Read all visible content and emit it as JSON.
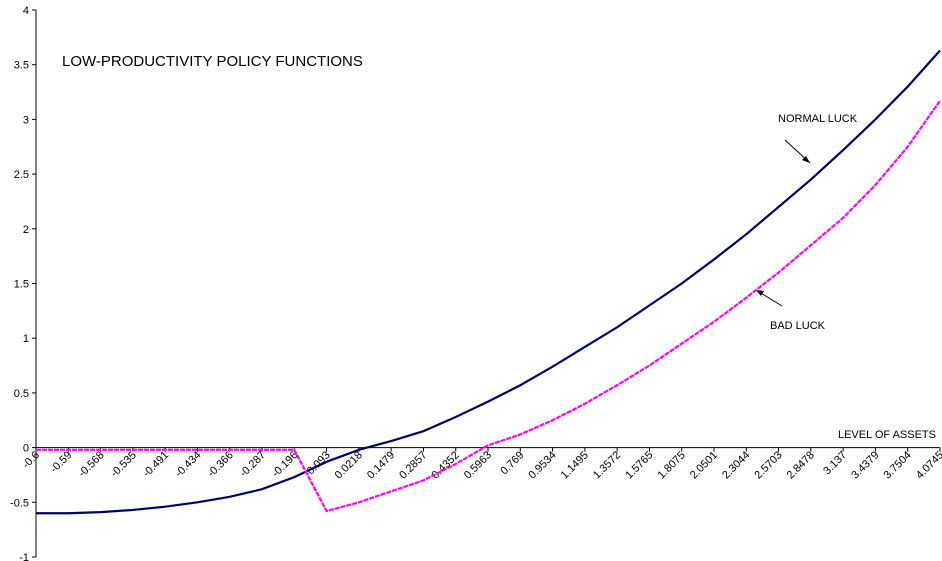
{
  "chart_data": {
    "type": "line",
    "title": "LOW-PRODUCTIVITY  POLICY FUNCTIONS",
    "x_label": "LEVEL OF ASSETS",
    "annotations": [
      "NORMAL LUCK",
      "BAD LUCK"
    ],
    "categories": [
      "-0.6",
      "-0.59",
      "-0.568",
      "-0.535",
      "-0.491",
      "-0.434",
      "-0.366",
      "-0.287",
      "-0.196",
      "-0.093",
      "0.0218",
      "0.1479",
      "0.2857",
      "0.4352",
      "0.5963",
      "0.769",
      "0.9534",
      "1.1495",
      "1.3572",
      "1.5765",
      "1.8075",
      "2.0501",
      "2.3044",
      "2.5703",
      "2.8478",
      "3.137",
      "3.4379",
      "3.7504",
      "4.0745"
    ],
    "series": [
      {
        "name": "NORMAL LUCK",
        "color": "#000066",
        "dashed": false,
        "values": [
          -0.6,
          -0.6,
          -0.59,
          -0.57,
          -0.54,
          -0.5,
          -0.45,
          -0.38,
          -0.27,
          -0.13,
          -0.02,
          0.06,
          0.15,
          0.28,
          0.42,
          0.57,
          0.74,
          0.92,
          1.1,
          1.3,
          1.5,
          1.72,
          1.95,
          2.2,
          2.45,
          2.72,
          3.0,
          3.3,
          3.63
        ]
      },
      {
        "name": "BAD LUCK",
        "color": "#ff00ff",
        "dashed": true,
        "values": [
          -0.02,
          -0.02,
          -0.02,
          -0.02,
          -0.02,
          -0.02,
          -0.02,
          -0.02,
          -0.02,
          -0.58,
          -0.5,
          -0.4,
          -0.3,
          -0.15,
          0.02,
          0.12,
          0.25,
          0.4,
          0.57,
          0.75,
          0.95,
          1.15,
          1.37,
          1.6,
          1.85,
          2.1,
          2.4,
          2.75,
          3.17
        ]
      }
    ],
    "ylim": [
      -1,
      4
    ],
    "yticks": [
      -1,
      -0.5,
      0,
      0.5,
      1,
      1.5,
      2,
      2.5,
      3,
      3.5,
      4
    ],
    "grid": false
  }
}
